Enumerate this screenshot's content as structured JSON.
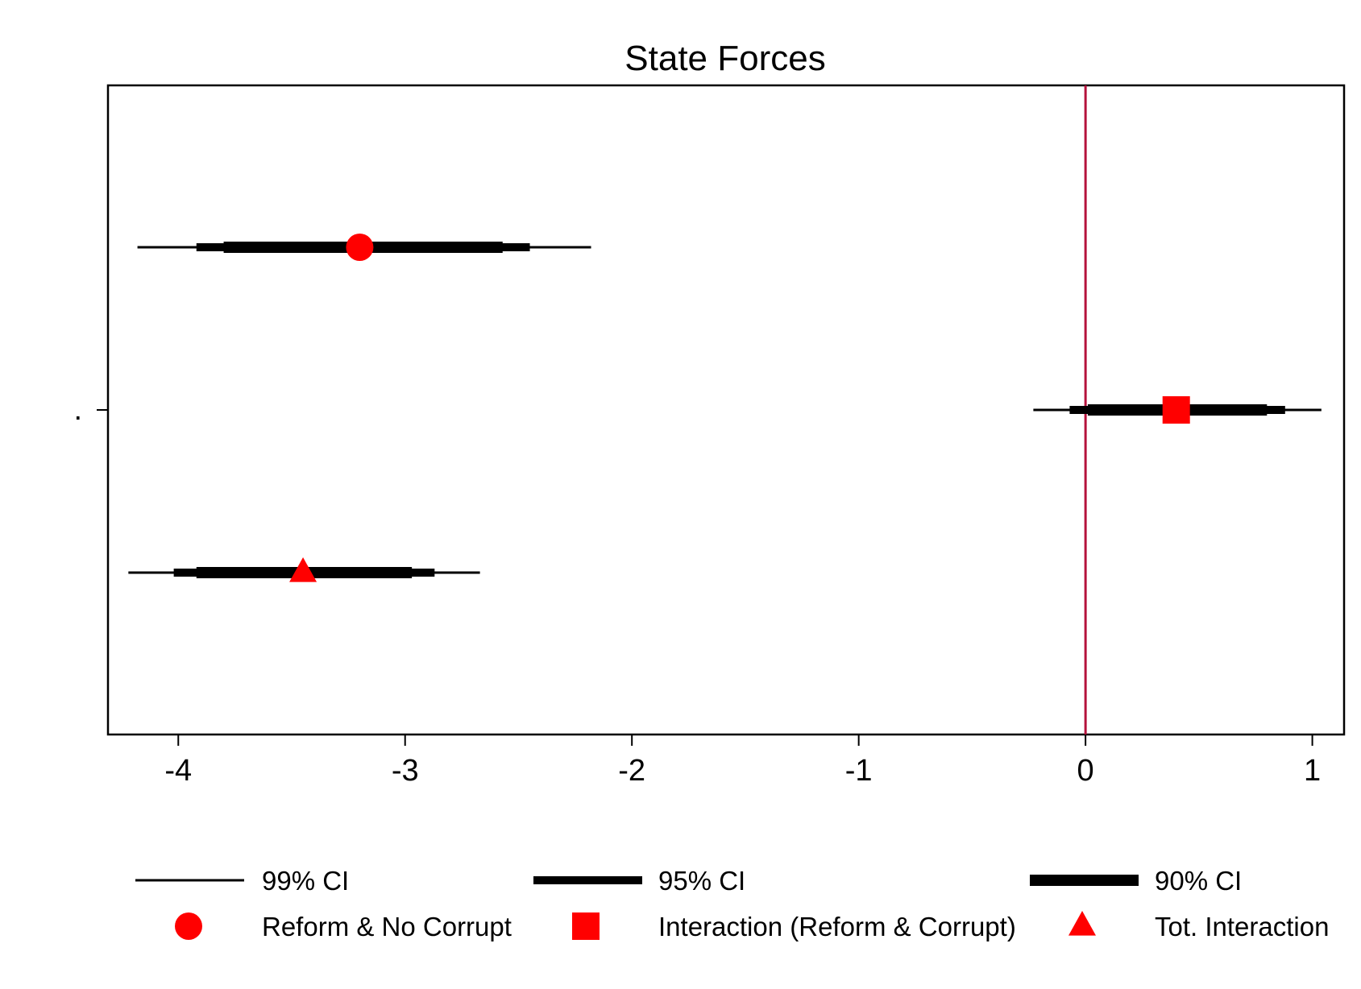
{
  "chart_data": {
    "type": "coefficient_plot",
    "title": "State Forces",
    "xlabel": "",
    "ylabel": "",
    "y_tick_labels": [
      "."
    ],
    "xlim": [
      -4.31,
      1.14
    ],
    "xticks": [
      -4,
      -3,
      -2,
      -1,
      0,
      1
    ],
    "xtick_labels": [
      "-4",
      "-3",
      "-2",
      "-1",
      "0",
      "1"
    ],
    "reference_line": {
      "x": 0,
      "color": "#b5123c"
    },
    "marker_color": "#ff0000",
    "ci_color": "#000000",
    "grid": false,
    "legend_position": "bottom",
    "series": [
      {
        "name": "Reform & No Corrupt",
        "marker": "circle",
        "estimate": -3.2,
        "ci99": [
          -4.18,
          -2.18
        ],
        "ci95": [
          -3.92,
          -2.45
        ],
        "ci90": [
          -3.8,
          -2.57
        ]
      },
      {
        "name": "Interaction (Reform & Corrupt)",
        "marker": "square",
        "estimate": 0.4,
        "ci99": [
          -0.23,
          1.04
        ],
        "ci95": [
          -0.07,
          0.88
        ],
        "ci90": [
          0.01,
          0.8
        ]
      },
      {
        "name": "Tot. Interaction",
        "marker": "triangle",
        "estimate": -3.45,
        "ci99": [
          -4.22,
          -2.67
        ],
        "ci95": [
          -4.02,
          -2.87
        ],
        "ci90": [
          -3.92,
          -2.97
        ]
      }
    ],
    "legend": {
      "line_items": [
        {
          "label": "99% CI",
          "width_class": "thin"
        },
        {
          "label": "95% CI",
          "width_class": "medium"
        },
        {
          "label": "90% CI",
          "width_class": "thick"
        }
      ],
      "marker_items": [
        {
          "label": "Reform & No Corrupt",
          "marker": "circle"
        },
        {
          "label": "Interaction (Reform & Corrupt)",
          "marker": "square"
        },
        {
          "label": "Tot. Interaction",
          "marker": "triangle"
        }
      ]
    }
  }
}
